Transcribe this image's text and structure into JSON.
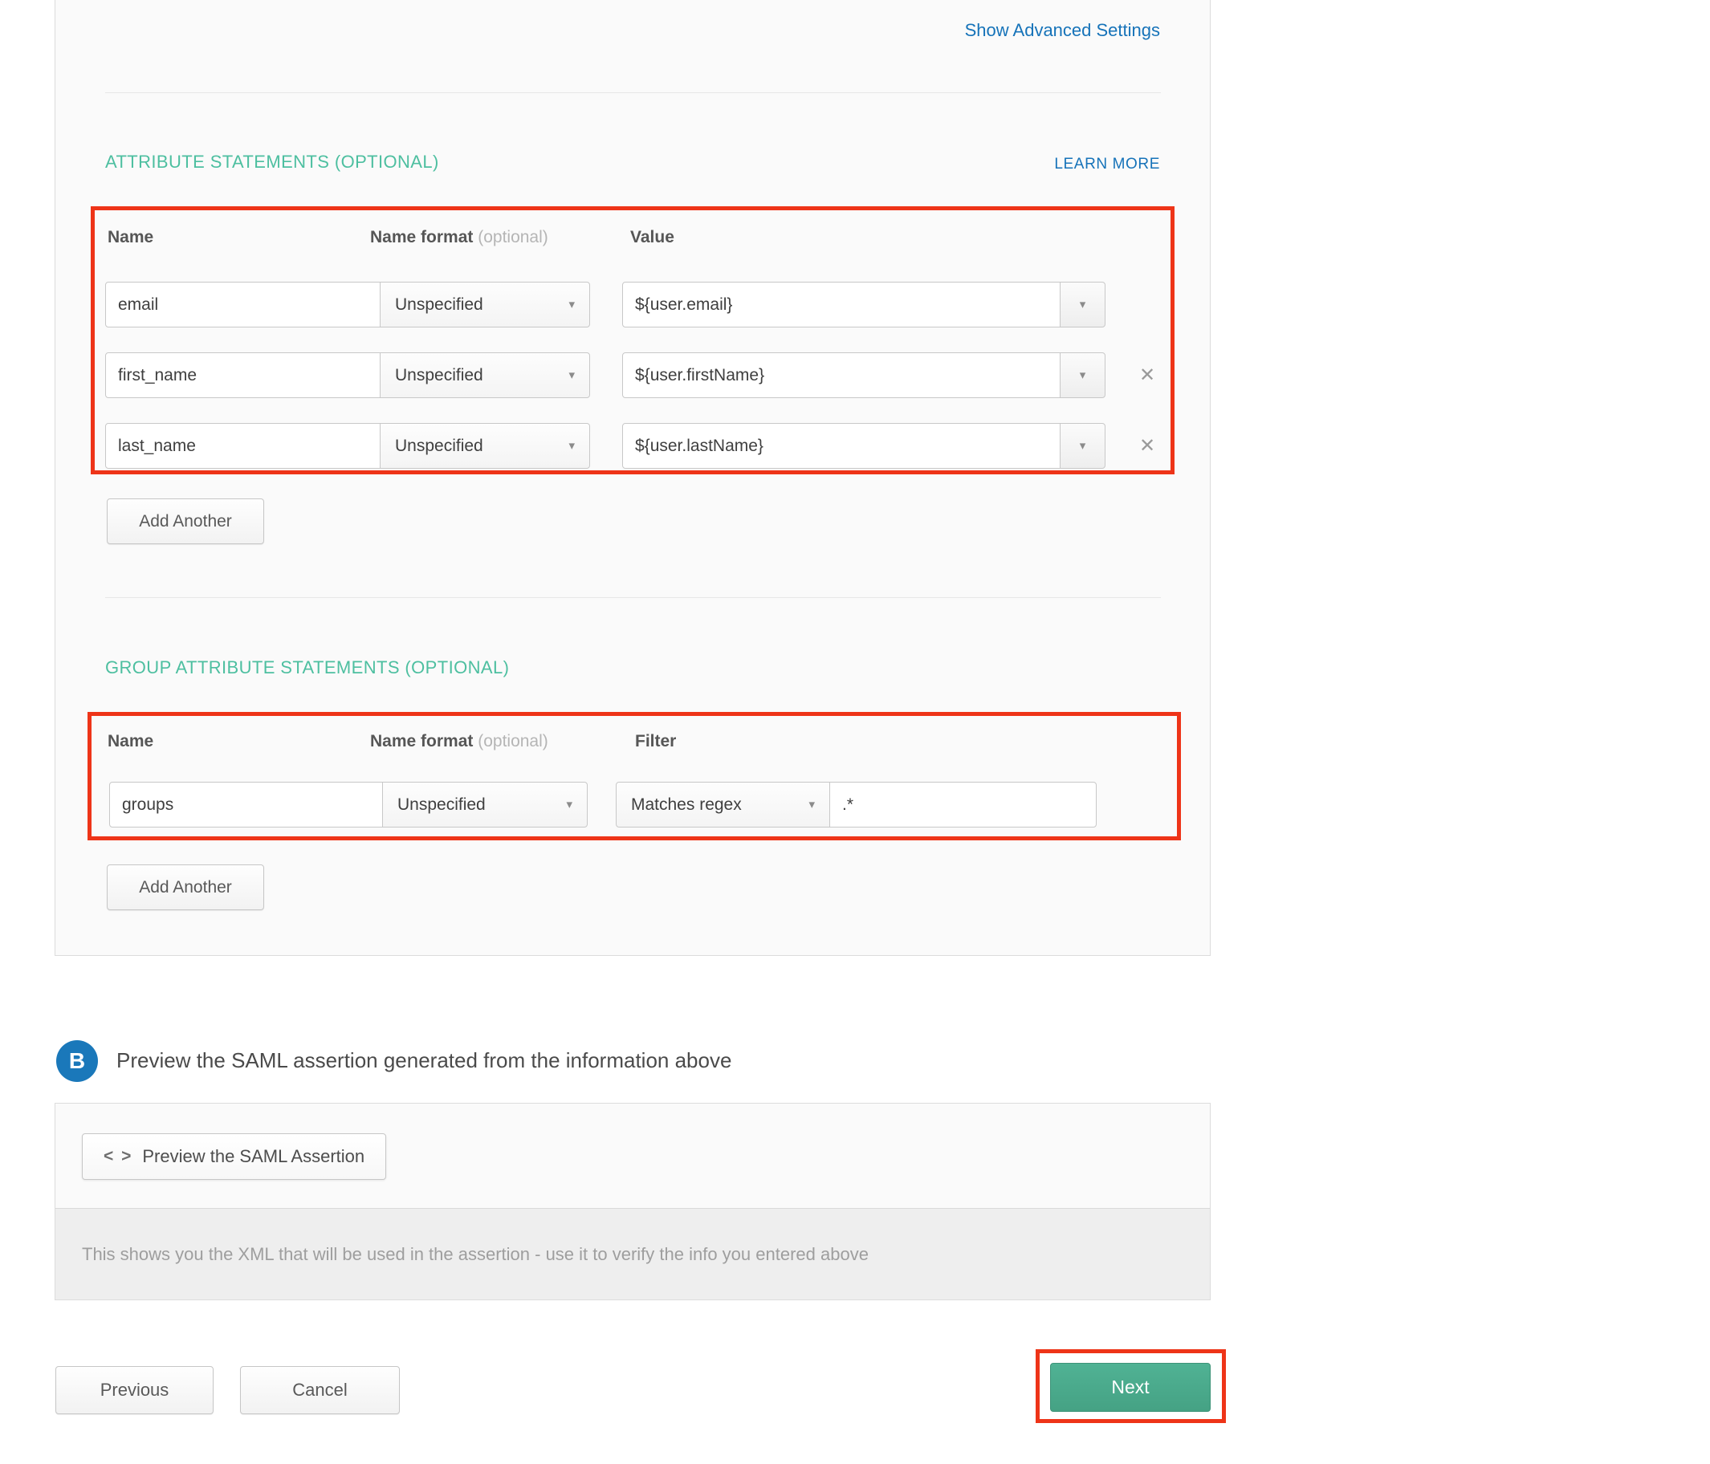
{
  "colors": {
    "heading_green": "#4dbfa0",
    "link_blue": "#1673b9",
    "annotation_red": "#ee3418",
    "next_green": "#45a284",
    "badge_blue": "#1a78ba"
  },
  "icons": {
    "dropdown": "▾",
    "close": "✕",
    "code": "< >"
  },
  "advanced_settings_link": "Show Advanced Settings",
  "attribute_statements": {
    "title": "ATTRIBUTE STATEMENTS (OPTIONAL)",
    "learn_more": "LEARN MORE",
    "headers": {
      "name": "Name",
      "name_format": "Name format",
      "name_format_optional": "(optional)",
      "value": "Value"
    },
    "rows": [
      {
        "name": "email",
        "format": "Unspecified",
        "value": "${user.email}"
      },
      {
        "name": "first_name",
        "format": "Unspecified",
        "value": "${user.firstName}"
      },
      {
        "name": "last_name",
        "format": "Unspecified",
        "value": "${user.lastName}"
      }
    ],
    "add_button": "Add Another"
  },
  "group_attribute_statements": {
    "title": "GROUP ATTRIBUTE STATEMENTS (OPTIONAL)",
    "headers": {
      "name": "Name",
      "name_format": "Name format",
      "name_format_optional": "(optional)",
      "filter": "Filter"
    },
    "rows": [
      {
        "name": "groups",
        "format": "Unspecified",
        "filter_type": "Matches regex",
        "filter_value": ".*"
      }
    ],
    "add_button": "Add Another"
  },
  "section_b": {
    "badge": "B",
    "label": "Preview the SAML assertion generated from the information above"
  },
  "preview": {
    "button_label": "Preview the SAML Assertion",
    "note": "This shows you the XML that will be used in the assertion - use it to verify the info you entered above"
  },
  "footer": {
    "previous": "Previous",
    "cancel": "Cancel",
    "next": "Next"
  }
}
